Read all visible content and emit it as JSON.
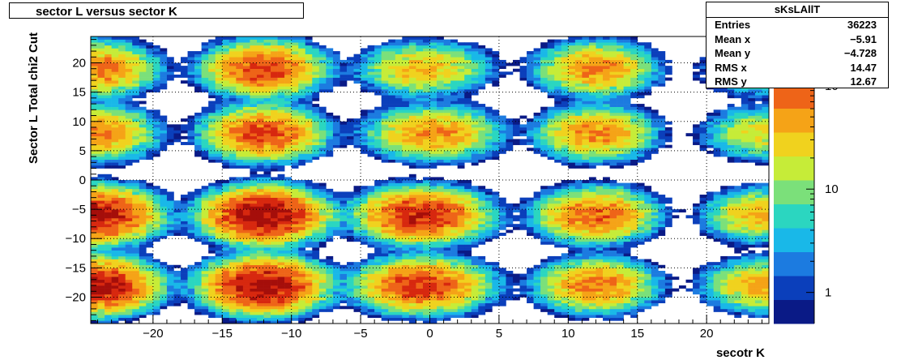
{
  "title": "sector L versus sector K",
  "stats_box": {
    "name": "sKsLAllT",
    "rows": [
      {
        "label": "Entries",
        "value": "36223"
      },
      {
        "label": "Mean x",
        "value": "−5.91"
      },
      {
        "label": "Mean y",
        "value": "−4.728"
      },
      {
        "label": "RMS x",
        "value": "14.47"
      },
      {
        "label": "RMS y",
        "value": "12.67"
      }
    ]
  },
  "chart_data": {
    "type": "heatmap",
    "title": "sector L versus sector K",
    "xlabel": "secotr K",
    "ylabel": "Sector L  Total chi2 Cut",
    "xlim": [
      -24.5,
      24.5
    ],
    "ylim": [
      -24.5,
      24.5
    ],
    "x_ticks": [
      -20,
      -15,
      -10,
      -5,
      0,
      5,
      10,
      15,
      20
    ],
    "y_ticks": [
      -20,
      -15,
      -10,
      -5,
      0,
      5,
      10,
      15,
      20
    ],
    "x_tick_labels": [
      "−20",
      "−15",
      "−10",
      "−5",
      "0",
      "5",
      "10",
      "15",
      "20"
    ],
    "y_tick_labels": [
      "−20",
      "−15",
      "−10",
      "−5",
      "0",
      "5",
      "10",
      "15",
      "20"
    ],
    "grid": true,
    "log_z": true,
    "z_range": [
      0.5,
      300
    ],
    "colorbar_ticks": [
      {
        "value": 1,
        "label": "1"
      },
      {
        "value": 10,
        "label": "10"
      },
      {
        "value": 100,
        "label": "10",
        "exp": "2"
      }
    ],
    "blobs": [
      {
        "kx": -12,
        "ky": 19,
        "v": 120
      },
      {
        "kx": -12,
        "ky": 8,
        "v": 110
      },
      {
        "kx": -12,
        "ky": -6,
        "v": 280
      },
      {
        "kx": -12,
        "ky": -18,
        "v": 260
      },
      {
        "kx": 12,
        "ky": 19,
        "v": 60
      },
      {
        "kx": 12,
        "ky": 8,
        "v": 60
      },
      {
        "kx": 12,
        "ky": -6,
        "v": 90
      },
      {
        "kx": 12,
        "ky": -18,
        "v": 70
      },
      {
        "kx": -1,
        "ky": 19,
        "v": 30
      },
      {
        "kx": -1,
        "ky": 8,
        "v": 25
      },
      {
        "kx": -1,
        "ky": -6,
        "v": 140
      },
      {
        "kx": -1,
        "ky": -18,
        "v": 110
      },
      {
        "kx": 1,
        "ky": 19,
        "v": 12
      },
      {
        "kx": 1,
        "ky": 8,
        "v": 40
      },
      {
        "kx": 1,
        "ky": -6,
        "v": 30
      },
      {
        "kx": 1,
        "ky": -18,
        "v": 30
      },
      {
        "kx": -24,
        "ky": 19,
        "v": 70
      },
      {
        "kx": -24,
        "ky": 8,
        "v": 60
      },
      {
        "kx": -24,
        "ky": -6,
        "v": 220
      },
      {
        "kx": -24,
        "ky": -18,
        "v": 220
      },
      {
        "kx": 24,
        "ky": 19,
        "v": 20
      },
      {
        "kx": 24,
        "ky": 8,
        "v": 25
      },
      {
        "kx": 24,
        "ky": -6,
        "v": 40
      },
      {
        "kx": 24,
        "ky": -18,
        "v": 40
      }
    ]
  },
  "colors": {
    "palette": [
      "#0a1a86",
      "#0b3fbb",
      "#1c7be0",
      "#19b8e8",
      "#2bd6c0",
      "#7be07a",
      "#c6ec38",
      "#f0d21e",
      "#f5a317",
      "#ee6418",
      "#d7280f",
      "#a50e0a"
    ]
  }
}
